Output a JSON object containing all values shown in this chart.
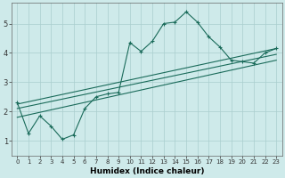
{
  "xlabel": "Humidex (Indice chaleur)",
  "bg_color": "#ceeaea",
  "line_color": "#1a6b5a",
  "grid_color": "#aacece",
  "xlim": [
    -0.5,
    23.5
  ],
  "ylim": [
    0.5,
    5.7
  ],
  "xticks": [
    0,
    1,
    2,
    3,
    4,
    5,
    6,
    7,
    8,
    9,
    10,
    11,
    12,
    13,
    14,
    15,
    16,
    17,
    18,
    19,
    20,
    21,
    22,
    23
  ],
  "yticks": [
    1,
    2,
    3,
    4,
    5
  ],
  "main_line_x": [
    0,
    1,
    2,
    3,
    4,
    5,
    6,
    7,
    8,
    9,
    10,
    11,
    12,
    13,
    14,
    15,
    16,
    17,
    18,
    19,
    20,
    21,
    22,
    23
  ],
  "main_line_y": [
    2.3,
    1.25,
    1.85,
    1.5,
    1.05,
    1.2,
    2.1,
    2.5,
    2.6,
    2.65,
    4.35,
    4.05,
    4.4,
    5.0,
    5.05,
    5.4,
    5.05,
    4.55,
    4.2,
    3.75,
    3.7,
    3.65,
    4.0,
    4.15
  ],
  "line2_x": [
    0,
    23
  ],
  "line2_y": [
    2.25,
    4.15
  ],
  "line3_x": [
    0,
    23
  ],
  "line3_y": [
    2.1,
    3.95
  ],
  "line4_x": [
    0,
    23
  ],
  "line4_y": [
    1.8,
    3.75
  ]
}
